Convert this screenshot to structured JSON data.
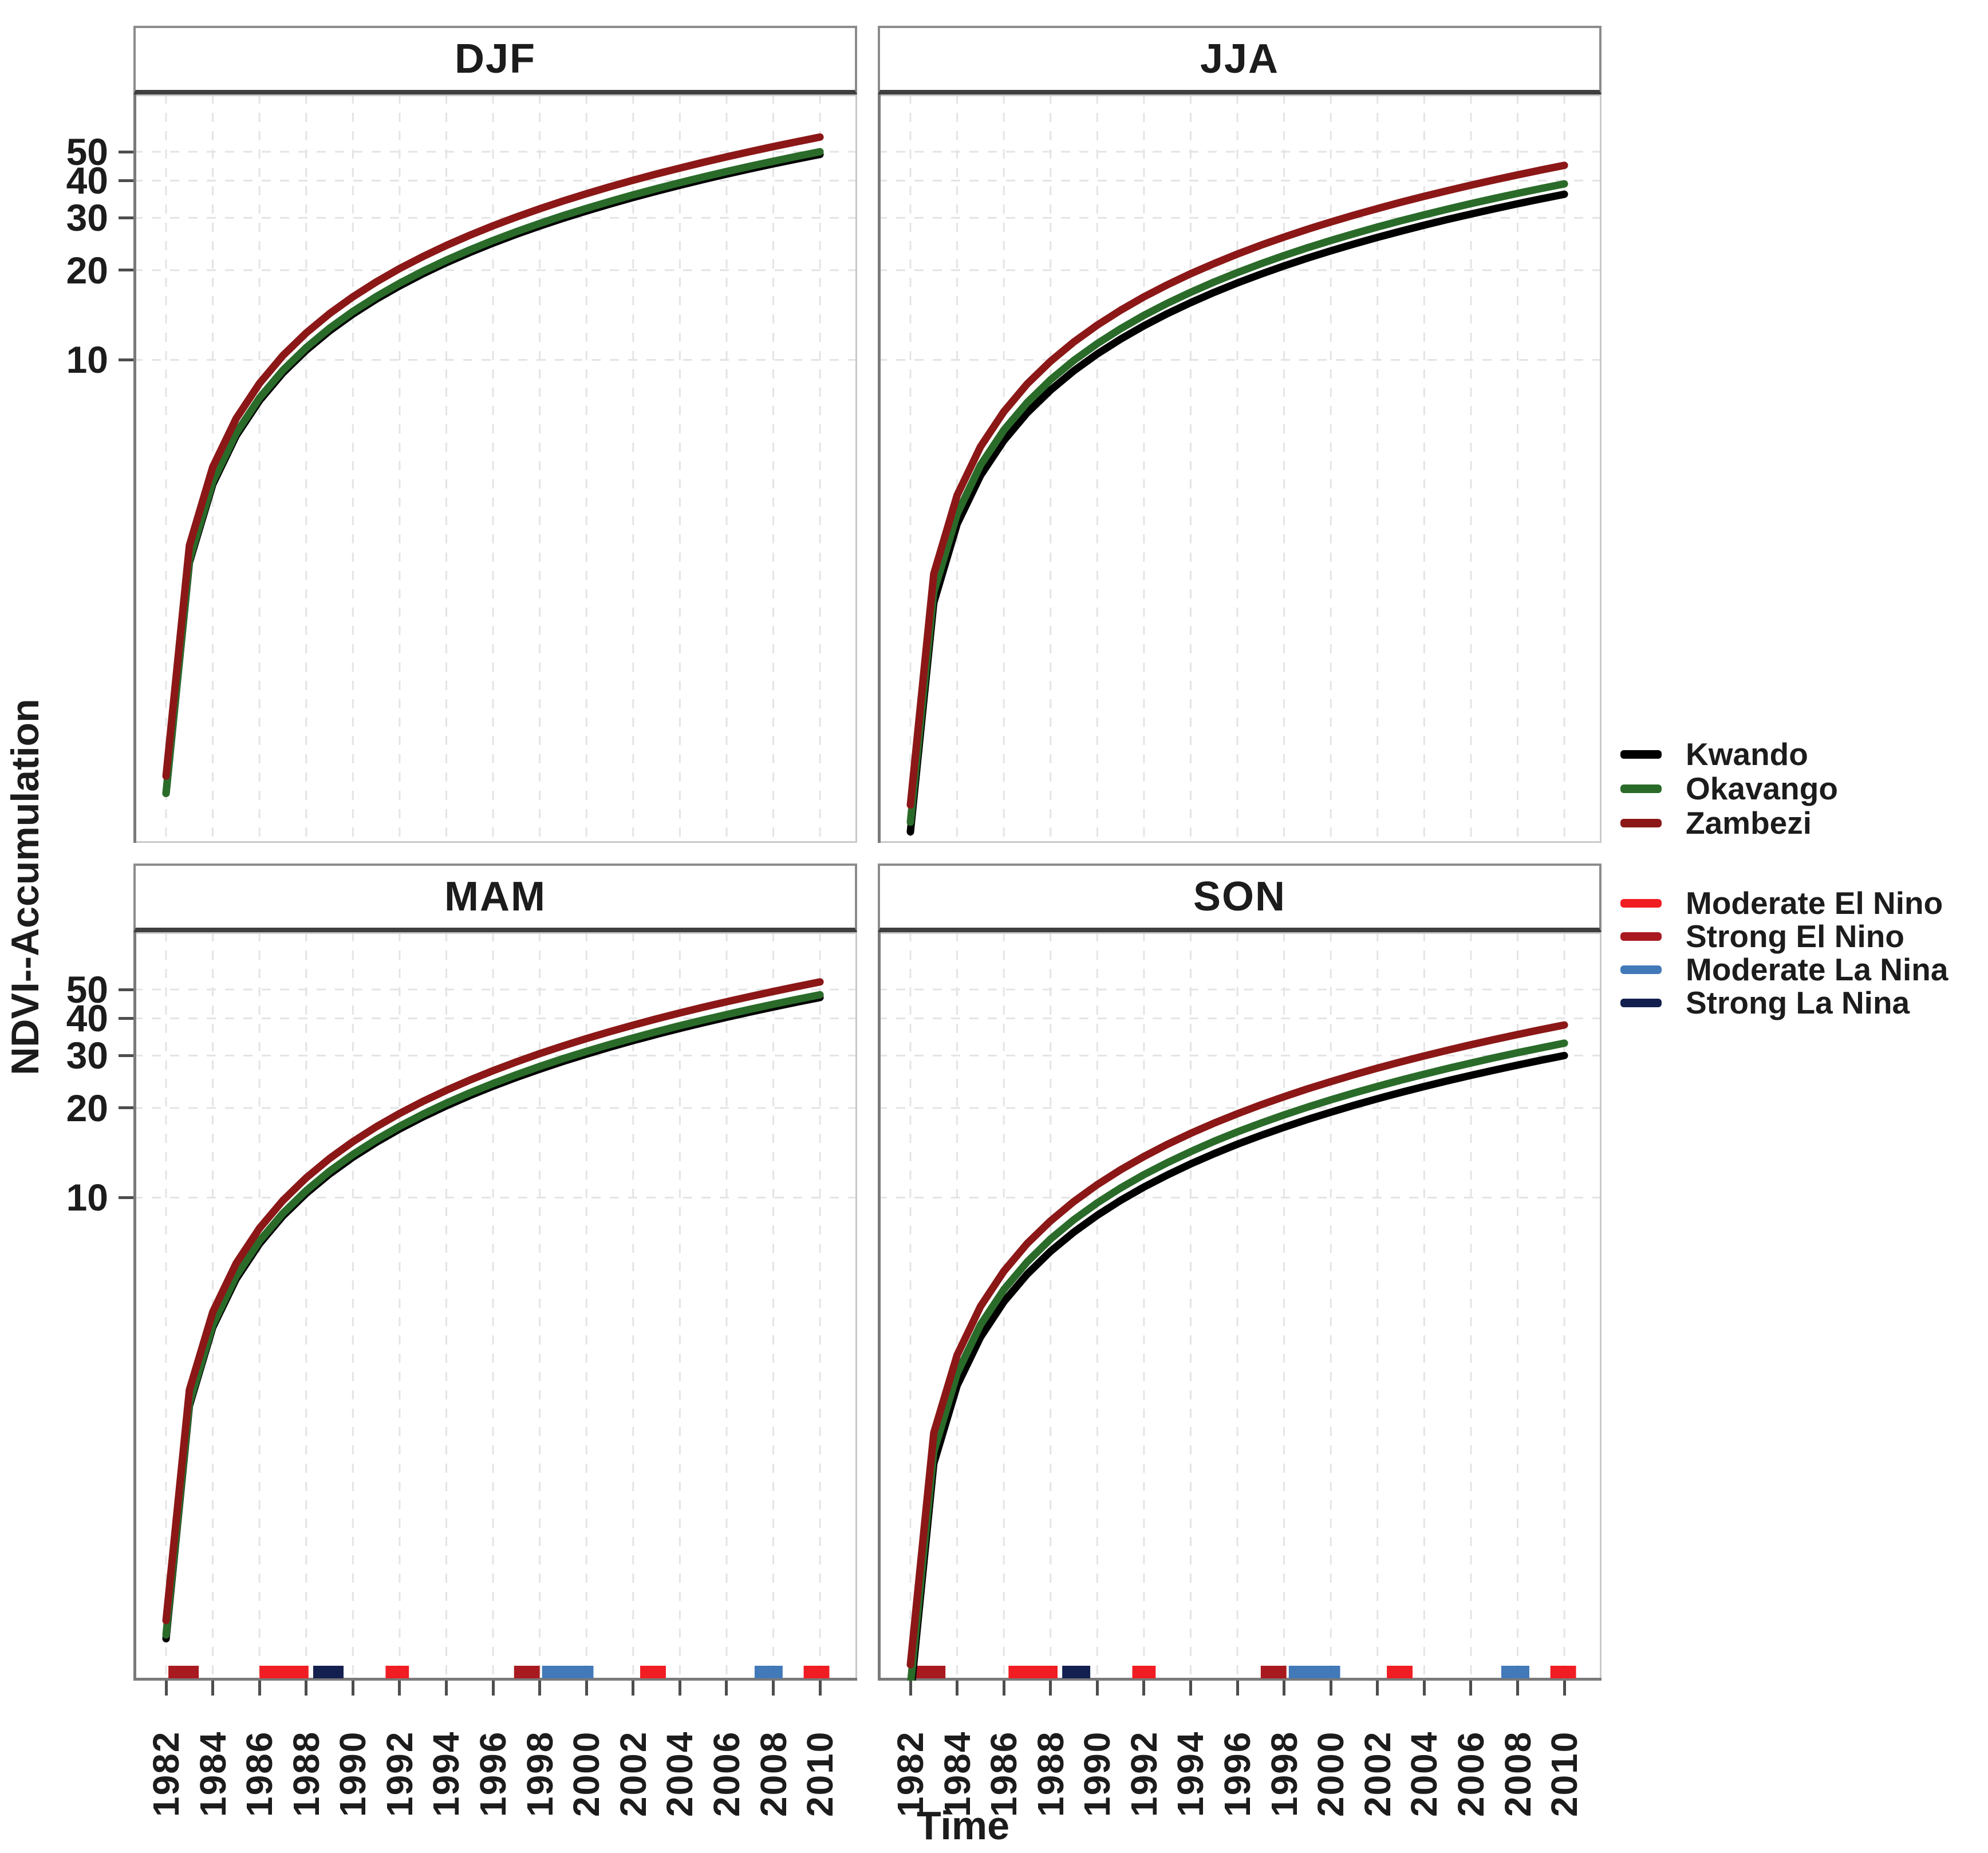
{
  "figure": {
    "y_axis_title": "NDVI--Accumulation",
    "x_axis_title": "Time",
    "colors": {
      "background": "#ffffff",
      "text": "#1c1c1c",
      "panel_border": "#c9c9c9",
      "axis_line": "#7a7a7a",
      "tick": "#4d4d4d",
      "gridline": "#e4e4e4",
      "strip_border": "#8c8c8c",
      "strip_border_bottom": "#3f3f3f",
      "kwando": "#000000",
      "okavango": "#2a6b2a",
      "zambezi": "#8c1717",
      "moderate_el_nino": "#f01d23",
      "strong_el_nino": "#a81a1f",
      "moderate_la_nina": "#4279b8",
      "strong_la_nina": "#131f4e"
    }
  },
  "legend": {
    "rivers": [
      {
        "label": "Kwando",
        "color_key": "kwando"
      },
      {
        "label": "Okavango",
        "color_key": "okavango"
      },
      {
        "label": "Zambezi",
        "color_key": "zambezi"
      }
    ],
    "events": [
      {
        "label": "Moderate El Nino",
        "color_key": "moderate_el_nino"
      },
      {
        "label": "Strong El Nino",
        "color_key": "strong_el_nino"
      },
      {
        "label": "Moderate La Nina",
        "color_key": "moderate_la_nina"
      },
      {
        "label": "Strong La Nina",
        "color_key": "strong_la_nina"
      }
    ]
  },
  "chart_data": [
    {
      "type": "line",
      "title": "DJF",
      "yscale": "log",
      "ylim": [
        0.24,
        78
      ],
      "grid": true,
      "y_ticks": [
        10,
        20,
        30,
        40,
        50
      ],
      "x_ticks": [
        1982,
        1984,
        1986,
        1988,
        1990,
        1992,
        1994,
        1996,
        1998,
        2000,
        2002,
        2004,
        2006,
        2008,
        2010
      ],
      "x": [
        1982,
        1983,
        1984,
        1985,
        1986,
        1987,
        1988,
        1989,
        1990,
        1991,
        1992,
        1993,
        1994,
        1995,
        1996,
        1997,
        1998,
        1999,
        2000,
        2001,
        2002,
        2003,
        2004,
        2005,
        2006,
        2007,
        2008,
        2009,
        2010
      ],
      "series": [
        {
          "name": "Kwando",
          "color_key": "kwando",
          "values": [
            0.35,
            2.09,
            3.82,
            5.56,
            7.3,
            9.04,
            10.77,
            12.51,
            14.25,
            15.99,
            17.72,
            19.46,
            21.2,
            22.94,
            24.67,
            26.41,
            28.15,
            29.89,
            31.62,
            33.36,
            35.1,
            36.84,
            38.57,
            40.31,
            42.05,
            43.79,
            45.52,
            47.26,
            49
          ]
        },
        {
          "name": "Okavango",
          "color_key": "okavango",
          "values": [
            0.35,
            2.13,
            3.9,
            5.67,
            7.45,
            9.22,
            10.99,
            12.77,
            14.54,
            16.31,
            18.09,
            19.86,
            21.63,
            23.4,
            25.18,
            26.95,
            28.72,
            30.5,
            32.27,
            34.04,
            35.82,
            37.59,
            39.36,
            41.13,
            42.91,
            44.68,
            46.45,
            48.23,
            50
          ]
        },
        {
          "name": "Zambezi",
          "color_key": "zambezi",
          "values": [
            0.4,
            2.38,
            4.37,
            6.35,
            8.34,
            10.33,
            12.31,
            14.3,
            16.28,
            18.27,
            20.26,
            22.24,
            24.23,
            26.21,
            28.2,
            30.18,
            32.17,
            34.16,
            36.14,
            38.13,
            40.11,
            42.1,
            44.08,
            46.07,
            48.06,
            50.04,
            52.03,
            54.01,
            56
          ]
        }
      ],
      "rug_events": []
    },
    {
      "type": "line",
      "title": "JJA",
      "yscale": "log",
      "ylim": [
        0.24,
        78
      ],
      "grid": true,
      "y_ticks": [
        10,
        20,
        30,
        40,
        50
      ],
      "x_ticks": [
        1982,
        1984,
        1986,
        1988,
        1990,
        1992,
        1994,
        1996,
        1998,
        2000,
        2002,
        2004,
        2006,
        2008,
        2010
      ],
      "x": [
        1982,
        1983,
        1984,
        1985,
        1986,
        1987,
        1988,
        1989,
        1990,
        1991,
        1992,
        1993,
        1994,
        1995,
        1996,
        1997,
        1998,
        1999,
        2000,
        2001,
        2002,
        2003,
        2004,
        2005,
        2006,
        2007,
        2008,
        2009,
        2010
      ],
      "series": [
        {
          "name": "Kwando",
          "color_key": "kwando",
          "values": [
            0.26,
            1.53,
            2.81,
            4.09,
            5.36,
            6.64,
            7.91,
            9.19,
            10.47,
            11.74,
            13.02,
            14.3,
            15.57,
            16.85,
            18.13,
            19.4,
            20.68,
            21.96,
            23.23,
            24.51,
            25.79,
            27.06,
            28.34,
            29.62,
            30.89,
            32.17,
            33.45,
            34.72,
            36
          ]
        },
        {
          "name": "Okavango",
          "color_key": "okavango",
          "values": [
            0.28,
            1.66,
            3.04,
            4.43,
            5.81,
            7.19,
            8.57,
            9.96,
            11.34,
            12.72,
            14.11,
            15.49,
            16.87,
            18.26,
            19.64,
            21.02,
            22.4,
            23.79,
            25.17,
            26.55,
            27.94,
            29.32,
            30.7,
            32.09,
            33.47,
            34.85,
            36.23,
            37.62,
            39
          ]
        },
        {
          "name": "Zambezi",
          "color_key": "zambezi",
          "values": [
            0.32,
            1.91,
            3.51,
            5.11,
            6.7,
            8.3,
            9.89,
            11.49,
            13.08,
            14.68,
            16.28,
            17.87,
            19.47,
            21.06,
            22.66,
            24.26,
            25.85,
            27.45,
            29.04,
            30.64,
            32.23,
            33.83,
            35.43,
            37.02,
            38.62,
            40.21,
            41.81,
            43.41,
            45
          ]
        }
      ],
      "rug_events": []
    },
    {
      "type": "line",
      "title": "MAM",
      "yscale": "log",
      "ylim": [
        0.24,
        78
      ],
      "grid": true,
      "y_ticks": [
        10,
        20,
        30,
        40,
        50
      ],
      "x_ticks": [
        1982,
        1984,
        1986,
        1988,
        1990,
        1992,
        1994,
        1996,
        1998,
        2000,
        2002,
        2004,
        2006,
        2008,
        2010
      ],
      "x": [
        1982,
        1983,
        1984,
        1985,
        1986,
        1987,
        1988,
        1989,
        1990,
        1991,
        1992,
        1993,
        1994,
        1995,
        1996,
        1997,
        1998,
        1999,
        2000,
        2001,
        2002,
        2003,
        2004,
        2005,
        2006,
        2007,
        2008,
        2009,
        2010
      ],
      "series": [
        {
          "name": "Kwando",
          "color_key": "kwando",
          "values": [
            0.33,
            2,
            3.67,
            5.33,
            7,
            8.67,
            10.33,
            12,
            13.67,
            15.33,
            17,
            18.67,
            20.33,
            22,
            23.67,
            25.33,
            27,
            28.67,
            30.33,
            32,
            33.67,
            35.33,
            37,
            38.67,
            40.33,
            42,
            43.67,
            45.33,
            47
          ]
        },
        {
          "name": "Okavango",
          "color_key": "okavango",
          "values": [
            0.34,
            2.04,
            3.74,
            5.45,
            7.15,
            8.85,
            10.55,
            12.26,
            13.96,
            15.66,
            17.36,
            19.06,
            20.77,
            22.47,
            24.17,
            25.87,
            27.57,
            29.28,
            30.98,
            32.68,
            34.38,
            36.09,
            37.79,
            39.49,
            41.19,
            42.89,
            44.6,
            46.3,
            48
          ]
        },
        {
          "name": "Zambezi",
          "color_key": "zambezi",
          "values": [
            0.38,
            2.26,
            4.13,
            6.01,
            7.89,
            9.77,
            11.65,
            13.53,
            15.41,
            17.29,
            19.17,
            21.05,
            22.93,
            24.81,
            26.69,
            28.57,
            30.45,
            32.33,
            34.21,
            36.08,
            37.96,
            39.84,
            41.72,
            43.6,
            45.48,
            47.36,
            49.24,
            51.12,
            53
          ]
        }
      ],
      "rug_events": [
        {
          "start": 1982.1,
          "end": 1983.4,
          "type": "strong_el_nino"
        },
        {
          "start": 1986.0,
          "end": 1988.1,
          "type": "moderate_el_nino"
        },
        {
          "start": 1988.3,
          "end": 1989.6,
          "type": "strong_la_nina"
        },
        {
          "start": 1991.4,
          "end": 1992.4,
          "type": "moderate_el_nino"
        },
        {
          "start": 1996.9,
          "end": 1998.0,
          "type": "strong_el_nino"
        },
        {
          "start": 1998.1,
          "end": 2000.3,
          "type": "moderate_la_nina"
        },
        {
          "start": 2002.3,
          "end": 2003.4,
          "type": "moderate_el_nino"
        },
        {
          "start": 2007.2,
          "end": 2008.4,
          "type": "moderate_la_nina"
        },
        {
          "start": 2009.3,
          "end": 2010.4,
          "type": "moderate_el_nino"
        }
      ]
    },
    {
      "type": "line",
      "title": "SON",
      "yscale": "log",
      "ylim": [
        0.24,
        78
      ],
      "grid": true,
      "y_ticks": [
        10,
        20,
        30,
        40,
        50
      ],
      "x_ticks": [
        1982,
        1984,
        1986,
        1988,
        1990,
        1992,
        1994,
        1996,
        1998,
        2000,
        2002,
        2004,
        2006,
        2008,
        2010
      ],
      "x": [
        1982,
        1983,
        1984,
        1985,
        1986,
        1987,
        1988,
        1989,
        1990,
        1991,
        1992,
        1993,
        1994,
        1995,
        1996,
        1997,
        1998,
        1999,
        2000,
        2001,
        2002,
        2003,
        2004,
        2005,
        2006,
        2007,
        2008,
        2009,
        2010
      ],
      "series": [
        {
          "name": "Kwando",
          "color_key": "kwando",
          "values": [
            0.21,
            1.28,
            2.34,
            3.4,
            4.47,
            5.53,
            6.6,
            7.66,
            8.72,
            9.79,
            10.85,
            11.91,
            12.98,
            14.04,
            15.11,
            16.17,
            17.23,
            18.3,
            19.36,
            20.43,
            21.49,
            22.55,
            23.62,
            24.68,
            25.74,
            26.81,
            27.87,
            28.94,
            30
          ]
        },
        {
          "name": "Okavango",
          "color_key": "okavango",
          "values": [
            0.23,
            1.4,
            2.57,
            3.74,
            4.91,
            6.08,
            7.26,
            8.43,
            9.6,
            10.77,
            11.94,
            13.1,
            14.27,
            15.45,
            16.62,
            17.79,
            18.96,
            20.13,
            21.3,
            22.47,
            23.64,
            24.81,
            25.98,
            27.15,
            28.32,
            29.49,
            30.66,
            31.83,
            33
          ]
        },
        {
          "name": "Zambezi",
          "color_key": "zambezi",
          "values": [
            0.27,
            1.62,
            2.96,
            4.31,
            5.66,
            7.01,
            8.35,
            9.7,
            11.05,
            12.4,
            13.74,
            15.09,
            16.44,
            17.79,
            19.13,
            20.48,
            21.83,
            23.18,
            24.52,
            25.87,
            27.22,
            28.57,
            29.91,
            31.26,
            32.61,
            33.96,
            35.3,
            36.65,
            38
          ]
        }
      ],
      "rug_events": [
        {
          "start": 1982.2,
          "end": 1983.5,
          "type": "strong_el_nino"
        },
        {
          "start": 1986.2,
          "end": 1988.3,
          "type": "moderate_el_nino"
        },
        {
          "start": 1988.5,
          "end": 1989.7,
          "type": "strong_la_nina"
        },
        {
          "start": 1991.5,
          "end": 1992.5,
          "type": "moderate_el_nino"
        },
        {
          "start": 1997.0,
          "end": 1998.1,
          "type": "strong_el_nino"
        },
        {
          "start": 1998.2,
          "end": 2000.4,
          "type": "moderate_la_nina"
        },
        {
          "start": 2002.4,
          "end": 2003.5,
          "type": "moderate_el_nino"
        },
        {
          "start": 2007.3,
          "end": 2008.5,
          "type": "moderate_la_nina"
        },
        {
          "start": 2009.4,
          "end": 2010.5,
          "type": "moderate_el_nino"
        }
      ]
    }
  ]
}
